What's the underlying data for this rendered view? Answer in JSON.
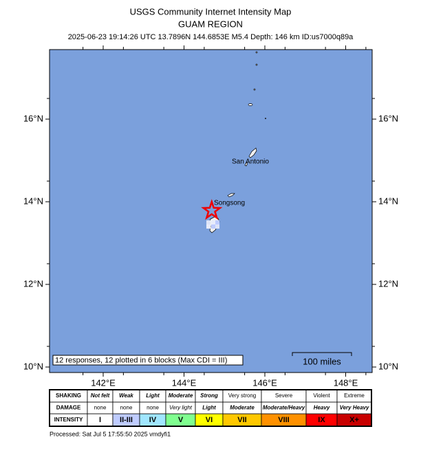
{
  "header": {
    "title": "USGS Community Internet Intensity Map",
    "subtitle": "GUAM REGION",
    "info": "2025-06-23 19:14:26 UTC 13.7896N 144.6853E M5.4 Depth: 146 km ID:us7000q89a"
  },
  "map": {
    "lat_ticks": [
      {
        "value": 16,
        "label": "16°N"
      },
      {
        "value": 14,
        "label": "14°N"
      },
      {
        "value": 12,
        "label": "12°N"
      },
      {
        "value": 10,
        "label": "10°N"
      }
    ],
    "lon_ticks": [
      {
        "value": 142,
        "label": "142°E"
      },
      {
        "value": 144,
        "label": "144°E"
      },
      {
        "value": 146,
        "label": "146°E"
      },
      {
        "value": 148,
        "label": "148°E"
      }
    ],
    "places": [
      "San Antonio",
      "Songsong"
    ],
    "responses": "12 responses, 12 plotted in 6 blocks (Max CDI = III)",
    "scale": "100 miles"
  },
  "legend": {
    "rows": [
      {
        "label": "SHAKING",
        "cells": [
          "Not felt",
          "Weak",
          "Light",
          "Moderate",
          "Strong",
          "Very strong",
          "Severe",
          "Violent",
          "Extreme"
        ]
      },
      {
        "label": "DAMAGE",
        "cells": [
          "none",
          "none",
          "none",
          "Very light",
          "Light",
          "Moderate",
          "Moderate/Heavy",
          "Heavy",
          "Very Heavy"
        ]
      },
      {
        "label": "INTENSITY",
        "cells": [
          "I",
          "II-III",
          "IV",
          "V",
          "VI",
          "VII",
          "VIII",
          "IX",
          "X+"
        ]
      }
    ],
    "colors": [
      "#ffffff",
      "#bfccff",
      "#a0e6ff",
      "#80ff90",
      "#ffff00",
      "#ffc800",
      "#ff9100",
      "#ff0000",
      "#c80000"
    ]
  },
  "footer": "Processed: Sat Jul  5 17:55:50 2025 vmdyfi1"
}
